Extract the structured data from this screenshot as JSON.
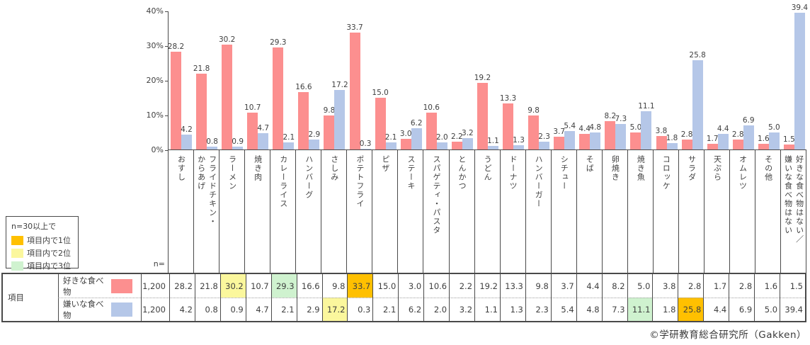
{
  "chart_data": {
    "type": "bar",
    "title": "",
    "xlabel": "",
    "ylabel": "",
    "ylim": [
      0,
      40
    ],
    "grid": false,
    "value_labels": true,
    "yticks": [
      {
        "value": 40,
        "label": "40%"
      },
      {
        "value": 30,
        "label": "30%"
      },
      {
        "value": 20,
        "label": "20%"
      },
      {
        "value": 10,
        "label": "10%"
      },
      {
        "value": 0,
        "label": "0%"
      }
    ],
    "categories": [
      "おすし",
      "フライドチキン・\nからあげ",
      "ラーメン",
      "焼き肉",
      "カレーライス",
      "ハンバーグ",
      "さしみ",
      "ポテトフライ",
      "ピザ",
      "ステーキ",
      "スパゲティ・パスタ",
      "とんかつ",
      "うどん",
      "ドーナツ",
      "ハンバーガー",
      "シチュー",
      "そば",
      "卵焼き",
      "焼き魚",
      "コロッケ",
      "サラダ",
      "天ぷら",
      "オムレツ",
      "その他",
      "好きな食べ物はない／\n嫌いな食べ物はない"
    ],
    "series": [
      {
        "name": "好きな食べ物",
        "color": "#FC8F8F",
        "n": "1,200",
        "values": [
          28.2,
          21.8,
          30.2,
          10.7,
          29.3,
          16.6,
          9.8,
          33.7,
          15.0,
          3.0,
          10.6,
          2.2,
          19.2,
          13.3,
          9.8,
          3.7,
          4.4,
          8.2,
          5.0,
          3.8,
          2.8,
          1.7,
          2.8,
          1.6,
          1.5
        ]
      },
      {
        "name": "嫌いな食べ物",
        "color": "#B5C7E8",
        "n": "1,200",
        "values": [
          4.2,
          0.8,
          0.9,
          4.7,
          2.1,
          2.9,
          17.2,
          0.3,
          2.1,
          6.2,
          2.0,
          3.2,
          1.1,
          1.3,
          2.3,
          5.4,
          4.8,
          7.3,
          11.1,
          1.8,
          25.8,
          4.4,
          6.9,
          5.0,
          39.4
        ]
      }
    ],
    "highlights": [
      {
        "series": 0,
        "col": 2,
        "rank": 2
      },
      {
        "series": 0,
        "col": 4,
        "rank": 3
      },
      {
        "series": 0,
        "col": 7,
        "rank": 1
      },
      {
        "series": 1,
        "col": 6,
        "rank": 2
      },
      {
        "series": 1,
        "col": 18,
        "rank": 3
      },
      {
        "series": 1,
        "col": 20,
        "rank": 1
      }
    ],
    "rank_colors": {
      "1": "#FFC000",
      "2": "#FBF79D",
      "3": "#CFF2CF"
    },
    "legend_position": "bottom-left-box"
  },
  "legend": {
    "title": "n=30以上で",
    "items": [
      {
        "rank": 1,
        "label": "項目内で1位"
      },
      {
        "rank": 2,
        "label": "項目内で2位"
      },
      {
        "rank": 3,
        "label": "項目内で3位"
      }
    ]
  },
  "table": {
    "corner_label": "項目",
    "n_header": "n="
  },
  "footer": {
    "copyright": "©学研教育総合研究所（Gakken）"
  }
}
